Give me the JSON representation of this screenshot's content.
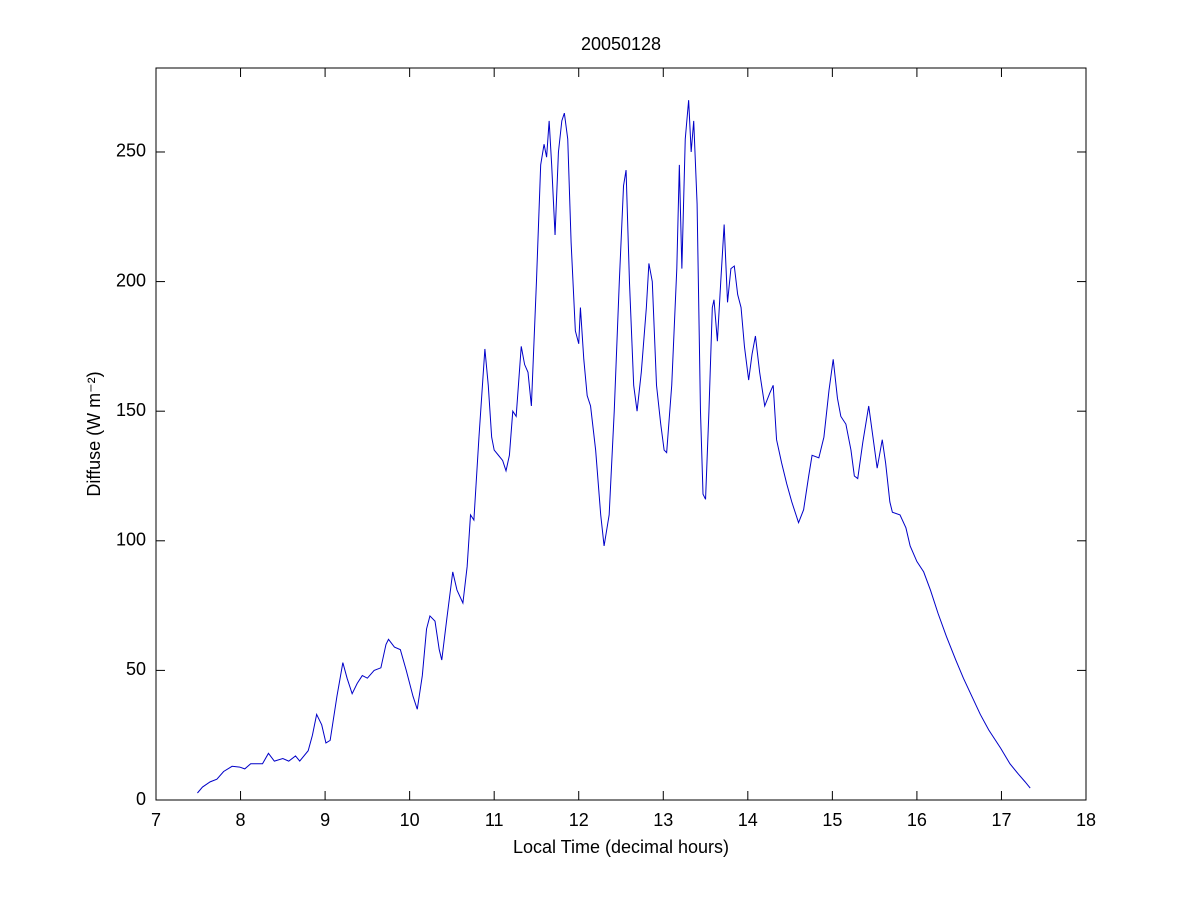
{
  "chart_data": {
    "type": "line",
    "title": "20050128",
    "xlabel": "Local Time (decimal hours)",
    "ylabel": "Diffuse (W m⁻²)",
    "color": "#0000c8",
    "xlim": [
      7,
      18
    ],
    "xticks": [
      7,
      8,
      9,
      10,
      11,
      12,
      13,
      14,
      15,
      16,
      17,
      18
    ],
    "ylim": [
      0,
      282.4
    ],
    "yticks": [
      0,
      50,
      100,
      150,
      200,
      250
    ],
    "x": [
      7.49,
      7.55,
      7.64,
      7.72,
      7.8,
      7.9,
      7.99,
      8.05,
      8.12,
      8.2,
      8.26,
      8.33,
      8.4,
      8.5,
      8.57,
      8.65,
      8.7,
      8.8,
      8.85,
      8.9,
      8.96,
      9.01,
      9.06,
      9.14,
      9.21,
      9.26,
      9.32,
      9.38,
      9.44,
      9.5,
      9.58,
      9.66,
      9.72,
      9.75,
      9.82,
      9.89,
      9.96,
      10.04,
      10.09,
      10.15,
      10.2,
      10.24,
      10.3,
      10.35,
      10.38,
      10.44,
      10.51,
      10.56,
      10.63,
      10.68,
      10.72,
      10.76,
      10.82,
      10.89,
      10.93,
      10.97,
      11.0,
      11.05,
      11.1,
      11.14,
      11.18,
      11.22,
      11.26,
      11.32,
      11.36,
      11.4,
      11.44,
      11.5,
      11.55,
      11.59,
      11.62,
      11.65,
      11.68,
      11.72,
      11.76,
      11.8,
      11.83,
      11.87,
      11.91,
      11.96,
      12.0,
      12.02,
      12.06,
      12.1,
      12.14,
      12.2,
      12.26,
      12.3,
      12.36,
      12.42,
      12.48,
      12.53,
      12.56,
      12.6,
      12.65,
      12.69,
      12.74,
      12.8,
      12.83,
      12.87,
      12.92,
      12.97,
      13.01,
      13.04,
      13.1,
      13.16,
      13.19,
      13.22,
      13.26,
      13.3,
      13.33,
      13.36,
      13.4,
      13.44,
      13.47,
      13.5,
      13.54,
      13.58,
      13.6,
      13.64,
      13.68,
      13.72,
      13.76,
      13.8,
      13.84,
      13.88,
      13.92,
      13.96,
      14.01,
      14.05,
      14.09,
      14.14,
      14.2,
      14.26,
      14.3,
      14.34,
      14.4,
      14.46,
      14.52,
      14.6,
      14.66,
      14.72,
      14.76,
      14.84,
      14.9,
      14.96,
      15.01,
      15.06,
      15.1,
      15.16,
      15.22,
      15.26,
      15.3,
      15.36,
      15.43,
      15.48,
      15.53,
      15.59,
      15.63,
      15.68,
      15.71,
      15.8,
      15.87,
      15.92,
      16.0,
      16.08,
      16.16,
      16.25,
      16.35,
      16.46,
      16.55,
      16.65,
      16.75,
      16.85,
      16.99,
      17.1,
      17.2,
      17.28,
      17.34
    ],
    "values": [
      2.7,
      5,
      7,
      8,
      11,
      13,
      12.7,
      12,
      14,
      14,
      14,
      18,
      15,
      16,
      15,
      17,
      15,
      19,
      25,
      33,
      29,
      22,
      23,
      40,
      53,
      47,
      41,
      45,
      48,
      47,
      50,
      51,
      60,
      62,
      59,
      58,
      50,
      40,
      35,
      48,
      66,
      71,
      69,
      58,
      54,
      70,
      88,
      81,
      76,
      90,
      110,
      108,
      140,
      174,
      160,
      140,
      135,
      133,
      131,
      127,
      133,
      150,
      148,
      175,
      168,
      165,
      152,
      200,
      245,
      253,
      248,
      262,
      245,
      218,
      250,
      262,
      265,
      255,
      215,
      181,
      176,
      190,
      170,
      156,
      152,
      135,
      110,
      98,
      110,
      150,
      200,
      237,
      243,
      200,
      160,
      150,
      165,
      190,
      207,
      200,
      160,
      145,
      135,
      134,
      160,
      205,
      245,
      205,
      255,
      270,
      250,
      262,
      230,
      150,
      118,
      116,
      150,
      190,
      193,
      177,
      200,
      222,
      192,
      205,
      206,
      195,
      190,
      175,
      162,
      172,
      179,
      165,
      152,
      157,
      160,
      139,
      130,
      122,
      115,
      107,
      112,
      125,
      133,
      132,
      140,
      158,
      170,
      155,
      148,
      145,
      135,
      125,
      124,
      138,
      152,
      140,
      128,
      139,
      130,
      115,
      111,
      110,
      105,
      98,
      92,
      88,
      81,
      72,
      63,
      54,
      47,
      40,
      33,
      27,
      20,
      14,
      10,
      7,
      4.6
    ]
  }
}
